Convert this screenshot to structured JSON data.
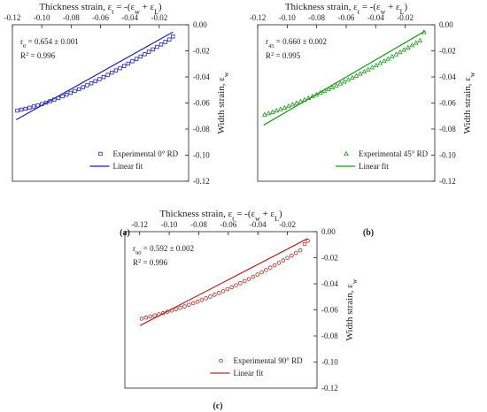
{
  "chart_data": [
    {
      "panel": "(a)",
      "type": "scatter",
      "xlabel_parts": [
        "Thickness strain, ε",
        "t",
        " = -(ε",
        "w",
        " + ε",
        "L",
        ")"
      ],
      "ylabel_parts": [
        "Width strain, ε",
        "w"
      ],
      "xlim": [
        -0.12,
        0.0
      ],
      "ylim": [
        -0.12,
        0.0
      ],
      "xticks": [
        -0.12,
        -0.1,
        -0.08,
        -0.06,
        -0.04,
        -0.02
      ],
      "xtick_labels": [
        "-0.12",
        "-0.10",
        "-0.08",
        "-0.06",
        "-0.04",
        "-0.02"
      ],
      "yticks": [
        0.0,
        -0.02,
        -0.04,
        -0.06,
        -0.08,
        -0.1,
        -0.12
      ],
      "ytick_labels": [
        "0.00",
        "-0.02",
        "-0.04",
        "-0.06",
        "-0.08",
        "-0.10",
        "-0.12"
      ],
      "x_axis_position": "top",
      "y_axis_position": "right",
      "marker": "square",
      "color": "#1f1fb4",
      "r_label": "r",
      "r_sub": "0",
      "r_value": " = 0.654 ± 0.001",
      "r2_text": "R",
      "r2_sup": "2",
      "r2_value": " = 0.996",
      "legend": [
        "Experimental   0° RD",
        "Linear fit"
      ],
      "legend_position": "bottom-right",
      "fit_line": [
        [
          -0.1174,
          -0.0728
        ],
        [
          -0.0106,
          -0.0055
        ]
      ],
      "series": [
        {
          "name": "Experimental   0° RD",
          "x": [
            -0.1167,
            -0.1139,
            -0.1111,
            -0.1083,
            -0.1055,
            -0.1027,
            -0.0999,
            -0.0971,
            -0.0943,
            -0.0915,
            -0.0887,
            -0.0859,
            -0.0831,
            -0.0803,
            -0.0775,
            -0.0747,
            -0.0719,
            -0.0691,
            -0.0663,
            -0.0635,
            -0.0607,
            -0.0579,
            -0.0551,
            -0.0523,
            -0.0495,
            -0.0467,
            -0.0439,
            -0.0411,
            -0.0383,
            -0.0355,
            -0.0327,
            -0.0299,
            -0.0271,
            -0.0243,
            -0.0215,
            -0.0187,
            -0.0159,
            -0.0131,
            -0.0107
          ],
          "y": [
            -0.0658,
            -0.0651,
            -0.0644,
            -0.0636,
            -0.0627,
            -0.0618,
            -0.0608,
            -0.0597,
            -0.0586,
            -0.0574,
            -0.0562,
            -0.0549,
            -0.0536,
            -0.0522,
            -0.0508,
            -0.0494,
            -0.0479,
            -0.0464,
            -0.0449,
            -0.0433,
            -0.0417,
            -0.0401,
            -0.0384,
            -0.0367,
            -0.035,
            -0.0333,
            -0.0316,
            -0.0298,
            -0.028,
            -0.0262,
            -0.0244,
            -0.0226,
            -0.0207,
            -0.0189,
            -0.017,
            -0.0151,
            -0.0132,
            -0.0113,
            -0.009
          ]
        }
      ]
    },
    {
      "panel": "(b)",
      "type": "scatter",
      "xlabel_parts": [
        "Thickness strain, ε",
        "t",
        " = -(ε",
        "w",
        " + ε",
        "L",
        ")"
      ],
      "ylabel_parts": [
        "Width strain, ε",
        "w"
      ],
      "xlim": [
        -0.12,
        0.0
      ],
      "ylim": [
        -0.12,
        0.0
      ],
      "xticks": [
        -0.12,
        -0.1,
        -0.08,
        -0.06,
        -0.04,
        -0.02
      ],
      "xtick_labels": [
        "-0.12",
        "-0.10",
        "-0.08",
        "-0.06",
        "-0.04",
        "-0.02"
      ],
      "yticks": [
        0.0,
        -0.02,
        -0.04,
        -0.06,
        -0.08,
        -0.1,
        -0.12
      ],
      "ytick_labels": [
        "0.00",
        "-0.02",
        "-0.04",
        "-0.06",
        "-0.08",
        "-0.10",
        "-0.12"
      ],
      "x_axis_position": "top",
      "y_axis_position": "right",
      "marker": "triangle",
      "color": "#1a9a1a",
      "r_label": "r",
      "r_sub": "45",
      "r_value": " = 0.660 ± 0.002",
      "r2_text": "R",
      "r2_sup": "2",
      "r2_value": " = 0.995",
      "legend": [
        "Experimental   45° RD",
        "Linear fit"
      ],
      "legend_position": "bottom-right",
      "fit_line": [
        [
          -0.1159,
          -0.0769
        ],
        [
          -0.0064,
          -0.0047
        ]
      ],
      "series": [
        {
          "name": "Experimental   45° RD",
          "x": [
            -0.1153,
            -0.1126,
            -0.1099,
            -0.1072,
            -0.1045,
            -0.1018,
            -0.0991,
            -0.0964,
            -0.0937,
            -0.091,
            -0.0883,
            -0.0856,
            -0.0829,
            -0.0802,
            -0.0775,
            -0.0748,
            -0.0721,
            -0.0694,
            -0.0667,
            -0.064,
            -0.0613,
            -0.0586,
            -0.0559,
            -0.0532,
            -0.0505,
            -0.0478,
            -0.0451,
            -0.0424,
            -0.0397,
            -0.037,
            -0.0343,
            -0.0316,
            -0.0289,
            -0.0262,
            -0.0235,
            -0.0208,
            -0.0181,
            -0.0154,
            -0.0127,
            -0.01,
            -0.0073
          ],
          "y": [
            -0.069,
            -0.068,
            -0.067,
            -0.0659,
            -0.0648,
            -0.0637,
            -0.0625,
            -0.0613,
            -0.0601,
            -0.0589,
            -0.0576,
            -0.0563,
            -0.055,
            -0.0537,
            -0.0523,
            -0.0509,
            -0.0495,
            -0.0481,
            -0.0467,
            -0.0452,
            -0.0437,
            -0.0422,
            -0.0407,
            -0.0392,
            -0.0376,
            -0.036,
            -0.0344,
            -0.0328,
            -0.0312,
            -0.0295,
            -0.0279,
            -0.0262,
            -0.0245,
            -0.0228,
            -0.0211,
            -0.0193,
            -0.0176,
            -0.0158,
            -0.014,
            -0.0122,
            -0.0058
          ]
        }
      ]
    },
    {
      "panel": "(c)",
      "type": "scatter",
      "xlabel_parts": [
        "Thickness strain, ε",
        "t",
        " = -(ε",
        "w",
        " + ε",
        "L",
        ")"
      ],
      "ylabel_parts": [
        "Width strain, ε",
        "w"
      ],
      "xlim": [
        -0.13,
        0.0
      ],
      "ylim": [
        -0.12,
        0.0
      ],
      "xticks": [
        -0.12,
        -0.1,
        -0.08,
        -0.06,
        -0.04,
        -0.02
      ],
      "xtick_labels": [
        "-0.12",
        "-0.10",
        "-0.08",
        "-0.06",
        "-0.04",
        "-0.02"
      ],
      "yticks": [
        0.0,
        -0.02,
        -0.04,
        -0.06,
        -0.08,
        -0.1,
        -0.12
      ],
      "ytick_labels": [
        "0.00",
        "-0.02",
        "-0.04",
        "-0.06",
        "-0.08",
        "-0.10",
        "-0.12"
      ],
      "x_axis_position": "top",
      "y_axis_position": "right",
      "marker": "circle",
      "color": "#b3261e",
      "r_label": "r",
      "r_sub": "90",
      "r_value": " = 0.592 ± 0.002",
      "r2_text": "R",
      "r2_sup": "2",
      "r2_value": " = 0.996",
      "legend": [
        "Experimental   90° RD",
        "Linear fit"
      ],
      "legend_position": "bottom-right",
      "fit_line": [
        [
          -0.1197,
          -0.072
        ],
        [
          -0.0065,
          -0.0054
        ]
      ],
      "series": [
        {
          "name": "Experimental   90° RD",
          "x": [
            -0.1186,
            -0.1157,
            -0.1128,
            -0.1099,
            -0.107,
            -0.1041,
            -0.1012,
            -0.0983,
            -0.0954,
            -0.0925,
            -0.0896,
            -0.0867,
            -0.0838,
            -0.0809,
            -0.078,
            -0.0751,
            -0.0722,
            -0.0693,
            -0.0664,
            -0.0635,
            -0.0606,
            -0.0577,
            -0.0548,
            -0.0519,
            -0.049,
            -0.0461,
            -0.0432,
            -0.0403,
            -0.0374,
            -0.0345,
            -0.0316,
            -0.0287,
            -0.0258,
            -0.0229,
            -0.02,
            -0.0171,
            -0.0142,
            -0.0113,
            -0.0084,
            -0.0062
          ],
          "y": [
            -0.0667,
            -0.0659,
            -0.0651,
            -0.0643,
            -0.0634,
            -0.0625,
            -0.0615,
            -0.0605,
            -0.0595,
            -0.0584,
            -0.0573,
            -0.0561,
            -0.0549,
            -0.0537,
            -0.0524,
            -0.0511,
            -0.0498,
            -0.0484,
            -0.047,
            -0.0456,
            -0.0441,
            -0.0426,
            -0.0411,
            -0.0395,
            -0.0379,
            -0.0363,
            -0.0346,
            -0.0329,
            -0.0312,
            -0.0294,
            -0.0276,
            -0.0258,
            -0.024,
            -0.0221,
            -0.0202,
            -0.0183,
            -0.0163,
            -0.0143,
            -0.0095,
            -0.007
          ]
        }
      ]
    }
  ]
}
